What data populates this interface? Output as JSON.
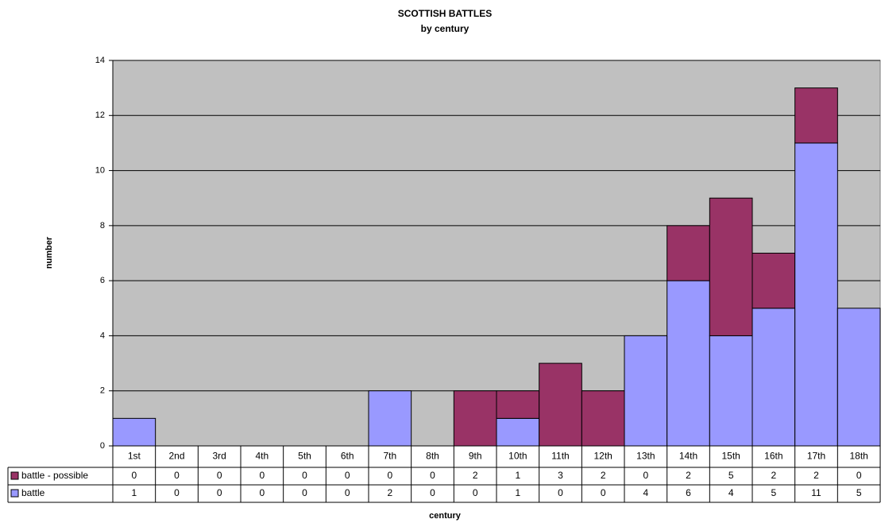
{
  "chart_data": {
    "type": "bar",
    "stacked": true,
    "title": "SCOTTISH BATTLES",
    "subtitle": "by century",
    "x_label": "century",
    "y_label": "number",
    "categories": [
      "1st",
      "2nd",
      "3rd",
      "4th",
      "5th",
      "6th",
      "7th",
      "8th",
      "9th",
      "10th",
      "11th",
      "12th",
      "13th",
      "14th",
      "15th",
      "16th",
      "17th",
      "18th"
    ],
    "series": [
      {
        "name": "battle - possible",
        "color": "#993366",
        "values": [
          0,
          0,
          0,
          0,
          0,
          0,
          0,
          0,
          2,
          1,
          3,
          2,
          0,
          2,
          5,
          2,
          2,
          0
        ]
      },
      {
        "name": "battle",
        "color": "#9999ff",
        "values": [
          1,
          0,
          0,
          0,
          0,
          0,
          2,
          0,
          0,
          1,
          0,
          0,
          4,
          6,
          4,
          5,
          11,
          5
        ]
      }
    ],
    "ylim": [
      0,
      14
    ],
    "yticks": [
      0,
      2,
      4,
      6,
      8,
      10,
      12,
      14
    ],
    "grid": true,
    "data_table": true
  }
}
